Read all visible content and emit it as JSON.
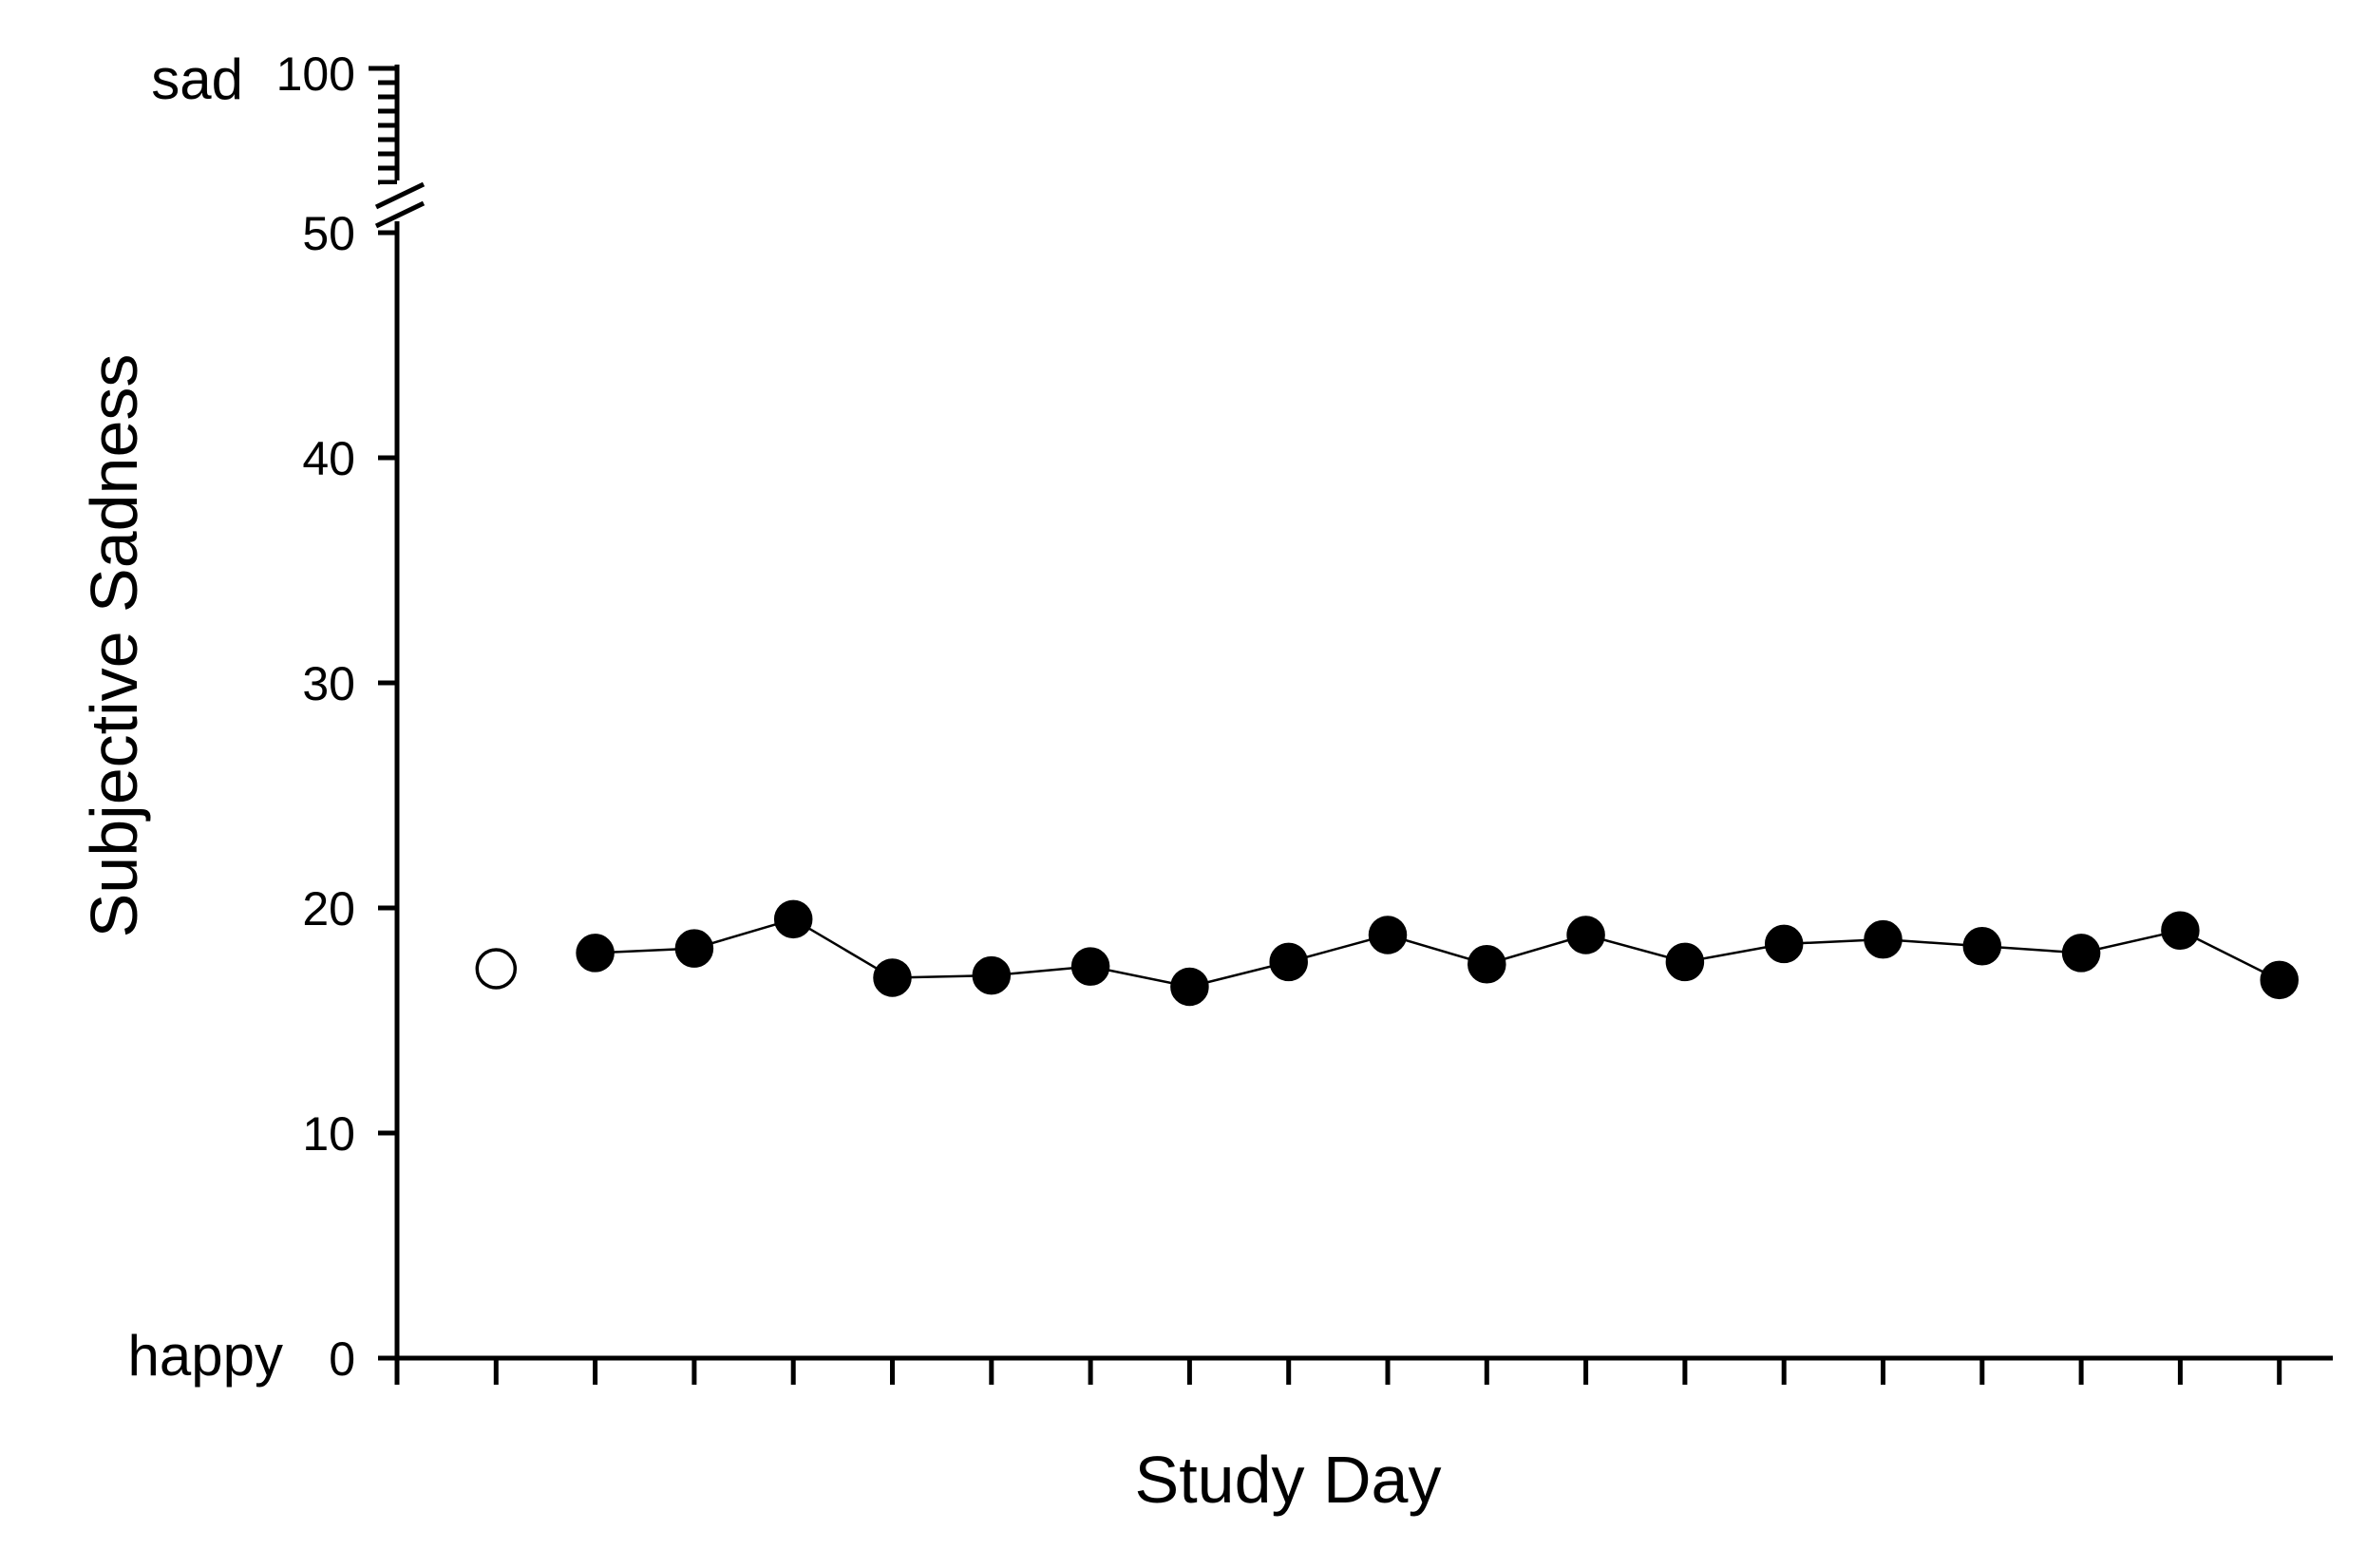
{
  "chart_data": {
    "type": "line",
    "title": "",
    "xlabel": "Study Day",
    "ylabel": "Subjective Sadness",
    "ylim": [
      0,
      50
    ],
    "y_break": {
      "lower_max": 50,
      "upper_max": 100
    },
    "yticks": [
      0,
      10,
      20,
      30,
      40,
      50
    ],
    "ytick_labels": [
      "0",
      "10",
      "20",
      "30",
      "40",
      "50"
    ],
    "upper_tick_label": "100",
    "y_end_labels": {
      "bottom": "happy",
      "top": "sad"
    },
    "x_range": [
      0,
      19
    ],
    "x_ticks": [
      0,
      1,
      2,
      3,
      4,
      5,
      6,
      7,
      8,
      9,
      10,
      11,
      12,
      13,
      14,
      15,
      16,
      17,
      18,
      19
    ],
    "grid": false,
    "baseline": {
      "x": 1,
      "y": 17.3,
      "marker": "open-circle"
    },
    "series": [
      {
        "marker": "filled-circle",
        "x": [
          2,
          3,
          4,
          5,
          6,
          7,
          8,
          9,
          10,
          11,
          12,
          13,
          14,
          15,
          16,
          17,
          18,
          19
        ],
        "y": [
          18.0,
          18.2,
          19.5,
          16.9,
          17.0,
          17.4,
          16.5,
          17.6,
          18.8,
          17.5,
          18.8,
          17.6,
          18.4,
          18.6,
          18.3,
          18.0,
          19.0,
          16.8
        ]
      }
    ]
  }
}
